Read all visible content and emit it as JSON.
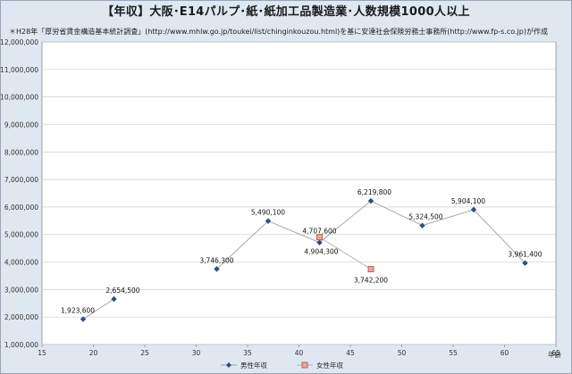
{
  "chart_data": {
    "type": "line",
    "title": "【年収】大阪･E14パルプ･紙･紙加工品製造業･人数規模1000人以上",
    "subtitle": "＊H28年「厚労省賃金構造基本統計調査」(http://www.mhlw.go.jp/toukei/list/chinginkouzou.html)を基に安達社会保険労務士事務所(http://www.fp-s.co.jp)が作成",
    "xlabel": "年齢",
    "ylabel": "",
    "xlim": [
      15,
      65
    ],
    "ylim": [
      1000000,
      12000000
    ],
    "x_ticks": [
      15,
      20,
      25,
      30,
      35,
      40,
      45,
      50,
      55,
      60,
      65
    ],
    "y_ticks": [
      1000000,
      2000000,
      3000000,
      4000000,
      5000000,
      6000000,
      7000000,
      8000000,
      9000000,
      10000000,
      11000000,
      12000000
    ],
    "y_tick_labels": [
      "1,000,000",
      "2,000,000",
      "3,000,000",
      "4,000,000",
      "5,000,000",
      "6,000,000",
      "7,000,000",
      "8,000,000",
      "9,000,000",
      "10,000,000",
      "11,000,000",
      "12,000,000"
    ],
    "grid": true,
    "legend_position": "bottom",
    "series": [
      {
        "name": "男性年収",
        "color": "#2f4e77",
        "marker": "diamond",
        "segments": [
          [
            {
              "x": 19,
              "y": 1923600,
              "label": "1,923,600"
            },
            {
              "x": 22,
              "y": 2654500,
              "label": "2,654,500"
            }
          ],
          [
            {
              "x": 32,
              "y": 3746300,
              "label": "3,746,300"
            },
            {
              "x": 37,
              "y": 5490100,
              "label": "5,490,100"
            },
            {
              "x": 42,
              "y": 4707600,
              "label": "4,707,600"
            },
            {
              "x": 47,
              "y": 6219800,
              "label": "6,219,800"
            },
            {
              "x": 52,
              "y": 5324500,
              "label": "5,324,500"
            },
            {
              "x": 57,
              "y": 5904100,
              "label": "5,904,100"
            },
            {
              "x": 62,
              "y": 3961400,
              "label": "3,961,400"
            }
          ]
        ]
      },
      {
        "name": "女性年収",
        "color": "#c0504d",
        "marker": "square",
        "segments": [
          [
            {
              "x": 42,
              "y": 4904300,
              "label": "4,904,300"
            },
            {
              "x": 47,
              "y": 3742200,
              "label": "3,742,200"
            }
          ]
        ]
      }
    ]
  }
}
